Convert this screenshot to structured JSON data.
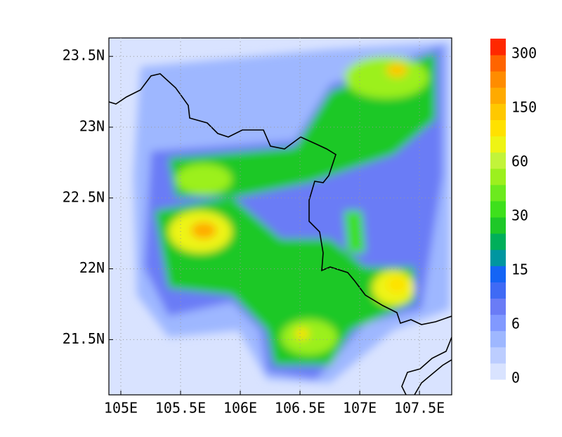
{
  "map": {
    "xlim": [
      104.9,
      107.77
    ],
    "ylim": [
      21.11,
      23.63
    ],
    "xticks": [
      {
        "value": 105,
        "label": "105E"
      },
      {
        "value": 105.5,
        "label": "105.5E"
      },
      {
        "value": 106,
        "label": "106E"
      },
      {
        "value": 106.5,
        "label": "106.5E"
      },
      {
        "value": 107,
        "label": "107E"
      },
      {
        "value": 107.5,
        "label": "107.5E"
      }
    ],
    "yticks": [
      {
        "value": 21.5,
        "label": "21.5N"
      },
      {
        "value": 22,
        "label": "22N"
      },
      {
        "value": 22.5,
        "label": "22.5N"
      },
      {
        "value": 23,
        "label": "23N"
      },
      {
        "value": 23.5,
        "label": "23.5N"
      }
    ],
    "grid": true
  },
  "colorbar": {
    "ticks": [
      0,
      6,
      15,
      30,
      60,
      150,
      300
    ],
    "colors": [
      "#d9e3ff",
      "#bccdff",
      "#9eb7ff",
      "#8199ff",
      "#6a7cf6",
      "#3f6af5",
      "#1464f5",
      "#0096a0",
      "#00af5a",
      "#1ec828",
      "#3ee01c",
      "#6cea1e",
      "#9cf01e",
      "#c2f43a",
      "#eef414",
      "#ffe100",
      "#ffc800",
      "#ffaa00",
      "#ff8c00",
      "#ff6400",
      "#ff2800"
    ]
  }
}
